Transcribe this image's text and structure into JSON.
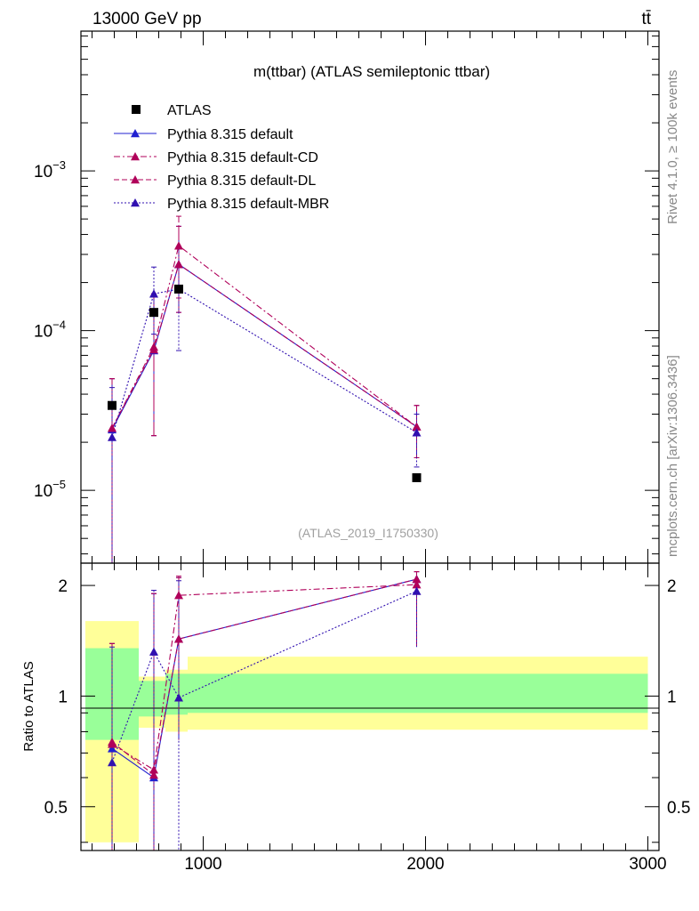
{
  "header": {
    "energy_label": "13000 GeV pp",
    "process_label": "tt̄"
  },
  "side_labels": {
    "rivet": "Rivet 4.1.0, ≥ 100k events",
    "source": "mcplots.cern.ch [arXiv:1306.3436]"
  },
  "chart_data": {
    "type": "line",
    "title": "m(ttbar) (ATLAS semileptonic ttbar)",
    "watermark": "(ATLAS_2019_I1750330)",
    "xlabel": "",
    "ylabel_ratio": "Ratio to ATLAS",
    "xlim": [
      450,
      3050
    ],
    "ylim_main": [
      3.5e-06,
      0.0075
    ],
    "ylim_ratio": [
      0.38,
      2.3
    ],
    "y_scale": "log",
    "x_ticks": [
      1000,
      2000,
      3000
    ],
    "x_tick_labels": [
      "1000",
      "2000",
      "3000"
    ],
    "main_y_ticks": [
      1e-05,
      0.0001,
      0.001
    ],
    "main_y_tick_exponents": [
      "−5",
      "−4",
      "−3"
    ],
    "main_y_tick_base": "10",
    "ratio_y_ticks": [
      0.5,
      1,
      2
    ],
    "ratio_y_tick_labels": [
      "0.5",
      "1",
      "2"
    ],
    "bins": [
      [
        470,
        710
      ],
      [
        710,
        830
      ],
      [
        830,
        930
      ],
      [
        930,
        3000
      ]
    ],
    "ref_band_1sigma": [
      [
        0.76,
        1.35
      ],
      [
        0.88,
        1.1
      ],
      [
        0.89,
        1.15
      ],
      [
        0.9,
        1.15
      ]
    ],
    "ref_band_2sigma": [
      [
        0.4,
        1.6
      ],
      [
        0.82,
        1.13
      ],
      [
        0.8,
        1.18
      ],
      [
        0.81,
        1.28
      ]
    ],
    "data": {
      "name": "ATLAS",
      "x": [
        590,
        778,
        890,
        1960
      ],
      "y": [
        3.4e-05,
        0.00013,
        0.000182,
        1.2e-05
      ]
    },
    "series": [
      {
        "name": "Pythia 8.315 default",
        "color": "#2020d0",
        "style": "solid",
        "marker": "triangle",
        "x": [
          590,
          778,
          890,
          1960
        ],
        "y": [
          2.4e-05,
          7.5e-05,
          0.00026,
          2.5e-05
        ],
        "err_lo": [
          3.5e-06,
          2.2e-05,
          0.00013,
          1.6e-05
        ],
        "err_hi": [
          5e-05,
          0.00017,
          0.00045,
          3.4e-05
        ],
        "ratio": [
          0.72,
          0.6,
          1.43,
          2.08
        ],
        "ratio_lo": [
          0.38,
          0.38,
          0.76,
          1.37
        ],
        "ratio_hi": [
          1.39,
          1.9,
          2.1,
          2.18
        ]
      },
      {
        "name": "Pythia 8.315 default-CD",
        "color": "#b0005a",
        "style": "dashdot",
        "marker": "triangle",
        "x": [
          590,
          778,
          890,
          1960
        ],
        "y": [
          2.45e-05,
          7.9e-05,
          0.00034,
          2.5e-05
        ],
        "err_lo": [
          3.5e-06,
          2.2e-05,
          0.00016,
          1.6e-05
        ],
        "err_hi": [
          5e-05,
          0.00017,
          0.00052,
          3.4e-05
        ],
        "ratio": [
          0.74,
          0.63,
          1.88,
          2.01
        ],
        "ratio_lo": [
          0.38,
          0.38,
          1.0,
          1.37
        ],
        "ratio_hi": [
          1.39,
          1.9,
          2.12,
          2.18
        ]
      },
      {
        "name": "Pythia 8.315 default-DL",
        "color": "#b0005a",
        "style": "dashed",
        "marker": "triangle",
        "x": [
          590,
          778,
          890,
          1960
        ],
        "y": [
          2.45e-05,
          7.6e-05,
          0.00026,
          2.5e-05
        ],
        "err_lo": [
          3.5e-06,
          2.2e-05,
          0.00013,
          1.6e-05
        ],
        "err_hi": [
          5e-05,
          0.00017,
          0.00045,
          3.4e-05
        ],
        "ratio": [
          0.75,
          0.61,
          1.43,
          2.08
        ],
        "ratio_lo": [
          0.38,
          0.38,
          0.76,
          1.37
        ],
        "ratio_hi": [
          1.39,
          1.9,
          2.1,
          2.18
        ]
      },
      {
        "name": "Pythia 8.315 default-MBR",
        "color": "#3010b0",
        "style": "dotted",
        "marker": "triangle",
        "x": [
          590,
          778,
          890,
          1960
        ],
        "y": [
          2.15e-05,
          0.00017,
          0.000182,
          2.3e-05
        ],
        "err_lo": [
          3.5e-06,
          9.5e-05,
          7.5e-05,
          1.4e-05
        ],
        "err_hi": [
          4.4e-05,
          0.00025,
          0.00033,
          3e-05
        ],
        "ratio": [
          0.66,
          1.32,
          0.99,
          1.93
        ],
        "ratio_lo": [
          0.38,
          0.38,
          0.38,
          1.36
        ],
        "ratio_hi": [
          1.36,
          1.94,
          2.06,
          2.05
        ]
      }
    ],
    "legend_position": "top-left"
  }
}
